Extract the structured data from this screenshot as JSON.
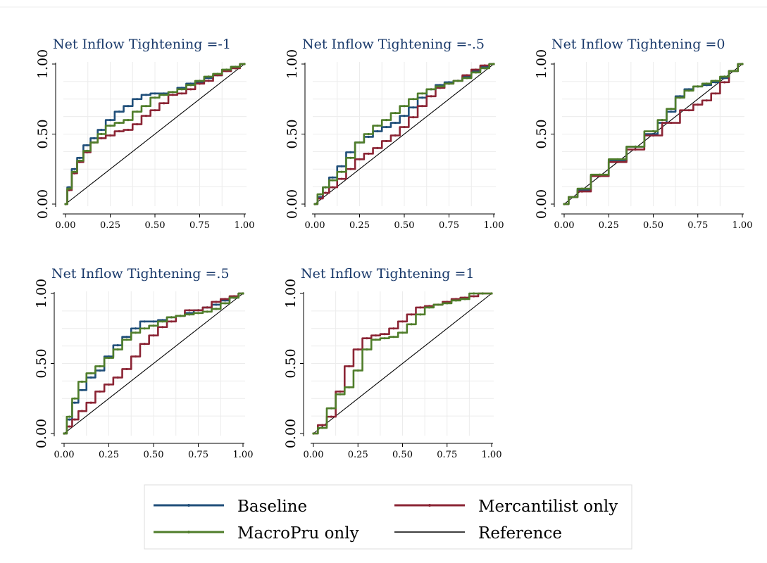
{
  "chart_data": {
    "type": "line",
    "legend": {
      "placement": "bottom",
      "entries": [
        {
          "name": "Baseline",
          "color": "#1f4e79"
        },
        {
          "name": "Mercantilist only",
          "color": "#8b2434"
        },
        {
          "name": "MacroPru only",
          "color": "#4f7d2a"
        },
        {
          "name": "Reference",
          "color": "#000000"
        }
      ]
    },
    "panels": [
      {
        "title": "Net Inflow Tightening =-1",
        "xlim": [
          0,
          1
        ],
        "ylim": [
          0,
          1
        ],
        "xticks": [
          "0.00",
          "0.25",
          "0.50",
          "0.75",
          "1.00"
        ],
        "yticks": [
          "0.00",
          "0.50",
          "1.00"
        ],
        "grid": true,
        "series": [
          {
            "name": "Baseline",
            "color": "#1f4e79",
            "x": [
              0,
              0.02,
              0.05,
              0.08,
              0.12,
              0.16,
              0.2,
              0.25,
              0.3,
              0.35,
              0.4,
              0.45,
              0.5,
              0.55,
              0.6,
              0.65,
              0.7,
              0.75,
              0.8,
              0.85,
              0.9,
              0.95,
              1
            ],
            "y": [
              0,
              0.12,
              0.25,
              0.33,
              0.42,
              0.47,
              0.53,
              0.6,
              0.66,
              0.7,
              0.75,
              0.78,
              0.79,
              0.79,
              0.8,
              0.83,
              0.86,
              0.87,
              0.9,
              0.92,
              0.95,
              0.98,
              1
            ]
          },
          {
            "name": "Mercantilist only",
            "color": "#8b2434",
            "x": [
              0,
              0.02,
              0.05,
              0.08,
              0.12,
              0.16,
              0.2,
              0.25,
              0.3,
              0.35,
              0.4,
              0.45,
              0.5,
              0.55,
              0.6,
              0.65,
              0.7,
              0.75,
              0.8,
              0.85,
              0.9,
              0.95,
              1
            ],
            "y": [
              0,
              0.1,
              0.22,
              0.3,
              0.37,
              0.44,
              0.47,
              0.49,
              0.52,
              0.53,
              0.57,
              0.63,
              0.67,
              0.72,
              0.78,
              0.79,
              0.82,
              0.86,
              0.88,
              0.92,
              0.95,
              0.97,
              1
            ]
          },
          {
            "name": "MacroPru only",
            "color": "#4f7d2a",
            "x": [
              0,
              0.02,
              0.05,
              0.08,
              0.12,
              0.16,
              0.2,
              0.25,
              0.3,
              0.35,
              0.4,
              0.45,
              0.5,
              0.55,
              0.6,
              0.65,
              0.7,
              0.75,
              0.8,
              0.85,
              0.9,
              0.95,
              1
            ],
            "y": [
              0,
              0.11,
              0.23,
              0.31,
              0.38,
              0.44,
              0.5,
              0.56,
              0.58,
              0.6,
              0.66,
              0.7,
              0.76,
              0.78,
              0.8,
              0.82,
              0.85,
              0.88,
              0.91,
              0.93,
              0.96,
              0.98,
              1
            ]
          },
          {
            "name": "Reference",
            "color": "#000000",
            "x": [
              0,
              1
            ],
            "y": [
              0,
              1
            ]
          }
        ]
      },
      {
        "title": "Net Inflow Tightening =-.5",
        "xlim": [
          0,
          1
        ],
        "ylim": [
          0,
          1
        ],
        "xticks": [
          "0.00",
          "0.25",
          "0.50",
          "0.75",
          "1.00"
        ],
        "yticks": [
          "0.00",
          "0.50",
          "1.00"
        ],
        "grid": true,
        "series": [
          {
            "name": "Baseline",
            "color": "#1f4e79",
            "x": [
              0,
              0.03,
              0.06,
              0.1,
              0.15,
              0.2,
              0.25,
              0.3,
              0.35,
              0.4,
              0.45,
              0.5,
              0.55,
              0.6,
              0.65,
              0.7,
              0.75,
              0.8,
              0.85,
              0.9,
              0.95,
              1
            ],
            "y": [
              0,
              0.05,
              0.12,
              0.19,
              0.27,
              0.37,
              0.44,
              0.48,
              0.52,
              0.55,
              0.58,
              0.63,
              0.69,
              0.76,
              0.82,
              0.85,
              0.87,
              0.88,
              0.91,
              0.95,
              0.98,
              1
            ]
          },
          {
            "name": "Mercantilist only",
            "color": "#8b2434",
            "x": [
              0,
              0.03,
              0.06,
              0.1,
              0.15,
              0.2,
              0.25,
              0.3,
              0.35,
              0.4,
              0.45,
              0.5,
              0.55,
              0.6,
              0.65,
              0.7,
              0.75,
              0.8,
              0.85,
              0.9,
              0.95,
              1
            ],
            "y": [
              0,
              0.04,
              0.08,
              0.12,
              0.18,
              0.25,
              0.32,
              0.36,
              0.4,
              0.45,
              0.49,
              0.55,
              0.62,
              0.7,
              0.77,
              0.83,
              0.86,
              0.88,
              0.92,
              0.96,
              0.99,
              1
            ]
          },
          {
            "name": "MacroPru only",
            "color": "#4f7d2a",
            "x": [
              0,
              0.03,
              0.06,
              0.1,
              0.15,
              0.2,
              0.25,
              0.3,
              0.35,
              0.4,
              0.45,
              0.5,
              0.55,
              0.6,
              0.65,
              0.7,
              0.75,
              0.8,
              0.85,
              0.9,
              0.95,
              1
            ],
            "y": [
              0,
              0.07,
              0.12,
              0.17,
              0.23,
              0.33,
              0.44,
              0.5,
              0.56,
              0.6,
              0.65,
              0.7,
              0.75,
              0.79,
              0.82,
              0.84,
              0.86,
              0.88,
              0.9,
              0.94,
              0.97,
              1
            ]
          },
          {
            "name": "Reference",
            "color": "#000000",
            "x": [
              0,
              1
            ],
            "y": [
              0,
              1
            ]
          }
        ]
      },
      {
        "title": "Net Inflow Tightening =0",
        "xlim": [
          0,
          1
        ],
        "ylim": [
          0,
          1
        ],
        "xticks": [
          "0.00",
          "0.25",
          "0.50",
          "0.75",
          "1.00"
        ],
        "yticks": [
          "0.00",
          "0.50",
          "1.00"
        ],
        "grid": true,
        "series": [
          {
            "name": "Baseline",
            "color": "#1f4e79",
            "x": [
              0,
              0.05,
              0.1,
              0.2,
              0.3,
              0.4,
              0.5,
              0.55,
              0.6,
              0.65,
              0.7,
              0.75,
              0.8,
              0.85,
              0.9,
              0.95,
              1
            ],
            "y": [
              0,
              0.05,
              0.1,
              0.2,
              0.31,
              0.41,
              0.5,
              0.58,
              0.66,
              0.77,
              0.82,
              0.84,
              0.85,
              0.87,
              0.9,
              0.95,
              1
            ]
          },
          {
            "name": "Mercantilist only",
            "color": "#8b2434",
            "x": [
              0,
              0.05,
              0.1,
              0.2,
              0.3,
              0.4,
              0.5,
              0.6,
              0.7,
              0.75,
              0.8,
              0.85,
              0.9,
              0.95,
              1
            ],
            "y": [
              0,
              0.05,
              0.09,
              0.2,
              0.3,
              0.39,
              0.49,
              0.58,
              0.67,
              0.71,
              0.74,
              0.79,
              0.87,
              0.95,
              1
            ]
          },
          {
            "name": "MacroPru only",
            "color": "#4f7d2a",
            "x": [
              0,
              0.05,
              0.1,
              0.2,
              0.3,
              0.4,
              0.5,
              0.55,
              0.6,
              0.65,
              0.7,
              0.75,
              0.8,
              0.85,
              0.9,
              0.95,
              1
            ],
            "y": [
              0,
              0.05,
              0.11,
              0.21,
              0.32,
              0.41,
              0.52,
              0.6,
              0.68,
              0.76,
              0.81,
              0.84,
              0.86,
              0.88,
              0.91,
              0.95,
              1
            ]
          },
          {
            "name": "Reference",
            "color": "#000000",
            "x": [
              0,
              1
            ],
            "y": [
              0,
              1
            ]
          }
        ]
      },
      {
        "title": "Net Inflow Tightening =.5",
        "xlim": [
          0,
          1
        ],
        "ylim": [
          0,
          1
        ],
        "xticks": [
          "0.00",
          "0.25",
          "0.50",
          "0.75",
          "1.00"
        ],
        "yticks": [
          "0.00",
          "0.50",
          "1.00"
        ],
        "grid": true,
        "series": [
          {
            "name": "Baseline",
            "color": "#1f4e79",
            "x": [
              0,
              0.03,
              0.06,
              0.1,
              0.15,
              0.2,
              0.25,
              0.3,
              0.35,
              0.4,
              0.45,
              0.5,
              0.55,
              0.6,
              0.65,
              0.7,
              0.75,
              0.8,
              0.85,
              0.9,
              0.95,
              1
            ],
            "y": [
              0,
              0.1,
              0.22,
              0.31,
              0.4,
              0.45,
              0.55,
              0.63,
              0.69,
              0.75,
              0.8,
              0.8,
              0.81,
              0.83,
              0.84,
              0.86,
              0.88,
              0.9,
              0.92,
              0.95,
              0.97,
              1
            ]
          },
          {
            "name": "Mercantilist only",
            "color": "#8b2434",
            "x": [
              0,
              0.03,
              0.06,
              0.1,
              0.15,
              0.2,
              0.25,
              0.3,
              0.35,
              0.4,
              0.45,
              0.5,
              0.55,
              0.6,
              0.65,
              0.7,
              0.75,
              0.8,
              0.85,
              0.9,
              0.95,
              1
            ],
            "y": [
              0,
              0.05,
              0.1,
              0.16,
              0.22,
              0.3,
              0.35,
              0.4,
              0.46,
              0.55,
              0.64,
              0.7,
              0.76,
              0.8,
              0.84,
              0.88,
              0.88,
              0.9,
              0.94,
              0.96,
              0.98,
              1
            ]
          },
          {
            "name": "MacroPru only",
            "color": "#4f7d2a",
            "x": [
              0,
              0.03,
              0.06,
              0.1,
              0.15,
              0.2,
              0.25,
              0.3,
              0.35,
              0.4,
              0.45,
              0.5,
              0.55,
              0.6,
              0.65,
              0.7,
              0.75,
              0.8,
              0.85,
              0.9,
              0.95,
              1
            ],
            "y": [
              0,
              0.12,
              0.25,
              0.37,
              0.43,
              0.48,
              0.54,
              0.6,
              0.67,
              0.72,
              0.75,
              0.77,
              0.8,
              0.83,
              0.84,
              0.85,
              0.86,
              0.87,
              0.89,
              0.93,
              0.97,
              1
            ]
          },
          {
            "name": "Reference",
            "color": "#000000",
            "x": [
              0,
              1
            ],
            "y": [
              0,
              1
            ]
          }
        ]
      },
      {
        "title": "Net Inflow Tightening =1",
        "xlim": [
          0,
          1
        ],
        "ylim": [
          0,
          1
        ],
        "xticks": [
          "0.00",
          "0.25",
          "0.50",
          "0.75",
          "1.00"
        ],
        "yticks": [
          "0.00",
          "0.50",
          "1.00"
        ],
        "grid": true,
        "series": [
          {
            "name": "Mercantilist only",
            "color": "#8b2434",
            "x": [
              0,
              0.05,
              0.1,
              0.15,
              0.2,
              0.25,
              0.3,
              0.35,
              0.4,
              0.45,
              0.5,
              0.55,
              0.6,
              0.65,
              0.7,
              0.75,
              0.8,
              0.85,
              0.9,
              0.95,
              1
            ],
            "y": [
              0,
              0.06,
              0.12,
              0.3,
              0.48,
              0.6,
              0.68,
              0.7,
              0.71,
              0.75,
              0.8,
              0.85,
              0.9,
              0.91,
              0.92,
              0.94,
              0.96,
              0.97,
              0.98,
              1,
              1
            ]
          },
          {
            "name": "MacroPru only",
            "color": "#4f7d2a",
            "x": [
              0,
              0.05,
              0.1,
              0.15,
              0.2,
              0.25,
              0.3,
              0.35,
              0.4,
              0.45,
              0.5,
              0.55,
              0.6,
              0.65,
              0.7,
              0.75,
              0.8,
              0.85,
              0.9,
              0.95,
              1
            ],
            "y": [
              0,
              0.04,
              0.18,
              0.28,
              0.33,
              0.45,
              0.6,
              0.67,
              0.68,
              0.69,
              0.72,
              0.78,
              0.85,
              0.9,
              0.92,
              0.93,
              0.95,
              0.96,
              1,
              1,
              1
            ]
          },
          {
            "name": "Reference",
            "color": "#000000",
            "x": [
              0,
              1
            ],
            "y": [
              0,
              1
            ]
          }
        ]
      }
    ]
  }
}
